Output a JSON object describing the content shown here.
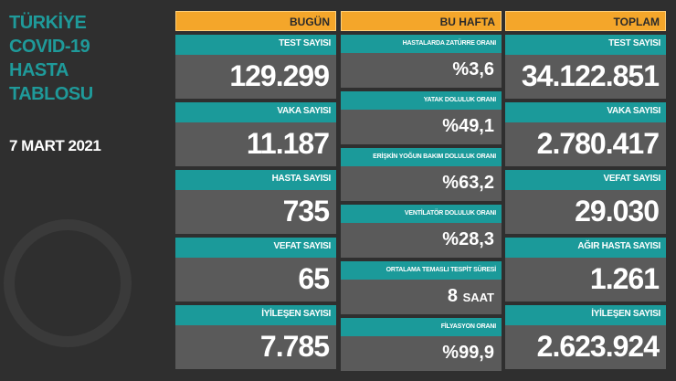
{
  "title": [
    "TÜRKİYE",
    "COVID-19",
    "HASTA",
    "TABLOSU"
  ],
  "date": "7 MART 2021",
  "colors": {
    "teal": "#1b9a9a",
    "orange": "#f4a62a",
    "gray": "#5a5a5a"
  },
  "today": {
    "header": "BUGÜN",
    "items": [
      {
        "label": "TEST SAYISI",
        "value": "129.299"
      },
      {
        "label": "VAKA SAYISI",
        "value": "11.187"
      },
      {
        "label": "HASTA SAYISI",
        "value": "735"
      },
      {
        "label": "VEFAT SAYISI",
        "value": "65"
      },
      {
        "label": "İYİLEŞEN SAYISI",
        "value": "7.785"
      }
    ]
  },
  "week": {
    "header": "BU HAFTA",
    "items": [
      {
        "label": "HASTALARDA ZATÜRRE ORANI",
        "value": "%3,6"
      },
      {
        "label": "YATAK DOLULUK ORANI",
        "value": "%49,1"
      },
      {
        "label": "ERİŞKİN YOĞUN BAKIM DOLULUK ORANI",
        "value": "%63,2"
      },
      {
        "label": "VENTİLATÖR DOLULUK ORANI",
        "value": "%28,3"
      },
      {
        "label": "ORTALAMA TEMASLI TESPİT SÜRESİ",
        "value": "8",
        "unit": "SAAT"
      },
      {
        "label": "FİLYASYON ORANI",
        "value": "%99,9"
      }
    ]
  },
  "total": {
    "header": "TOPLAM",
    "items": [
      {
        "label": "TEST SAYISI",
        "value": "34.122.851"
      },
      {
        "label": "VAKA SAYISI",
        "value": "2.780.417"
      },
      {
        "label": "VEFAT SAYISI",
        "value": "29.030"
      },
      {
        "label": "AĞIR HASTA SAYISI",
        "value": "1.261"
      },
      {
        "label": "İYİLEŞEN SAYISI",
        "value": "2.623.924"
      }
    ]
  }
}
